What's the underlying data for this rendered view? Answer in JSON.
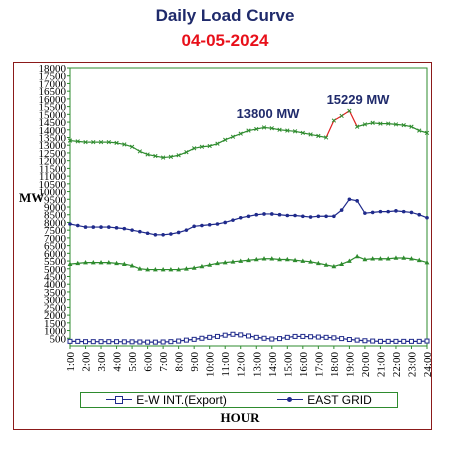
{
  "chart_data": {
    "type": "line",
    "title": "Daily Load Curve",
    "subtitle": "04-05-2024",
    "xlabel": "HOUR",
    "ylabel": "MW",
    "ylim": [
      0,
      18000
    ],
    "yticks": [
      "500",
      "1000",
      "1500",
      "2000",
      "2500",
      "3000",
      "3500",
      "4000",
      "4500",
      "5000",
      "5500",
      "6000",
      "6500",
      "7000",
      "7500",
      "8000",
      "8500",
      "9000",
      "9500",
      "10000",
      "10500",
      "11000",
      "11500",
      "12000",
      "12500",
      "13000",
      "13500",
      "14000",
      "14500",
      "15000",
      "15500",
      "16000",
      "16500",
      "17000",
      "17500",
      "18000"
    ],
    "categories": [
      "1:00",
      "2:00",
      "3:00",
      "4:00",
      "5:00",
      "6:00",
      "7:00",
      "8:00",
      "9:00",
      "10:00",
      "11:00",
      "12:00",
      "13:00",
      "14:00",
      "15:00",
      "16:00",
      "17:00",
      "18:00",
      "19:00",
      "20:00",
      "21:00",
      "22:00",
      "23:00",
      "24:00"
    ],
    "x": [
      1,
      1.5,
      2,
      2.5,
      3,
      3.5,
      4,
      4.5,
      5,
      5.5,
      6,
      6.5,
      7,
      7.5,
      8,
      8.5,
      9,
      9.5,
      10,
      10.5,
      11,
      11.5,
      12,
      12.5,
      13,
      13.5,
      14,
      14.5,
      15,
      15.5,
      16,
      16.5,
      17,
      17.5,
      18,
      18.5,
      19,
      19.5,
      20,
      20.5,
      21,
      21.5,
      22,
      22.5,
      23,
      23.5,
      24
    ],
    "series": [
      {
        "name": "",
        "color": "#2e8b2e",
        "marker": "cross",
        "values": [
          13300,
          13250,
          13200,
          13200,
          13200,
          13200,
          13150,
          13050,
          12900,
          12600,
          12400,
          12300,
          12200,
          12250,
          12350,
          12550,
          12800,
          12900,
          12950,
          13100,
          13350,
          13550,
          13750,
          13950,
          14050,
          14150,
          14100,
          14000,
          13950,
          13900,
          13800,
          13700,
          13600,
          13500,
          14600,
          14900,
          15229,
          14200,
          14350,
          14450,
          14400,
          14400,
          14350,
          14300,
          14200,
          13950,
          13800
        ]
      },
      {
        "name": "EAST GRID",
        "color": "#1f2a8b",
        "marker": "dot",
        "values": [
          7900,
          7800,
          7700,
          7700,
          7700,
          7700,
          7650,
          7600,
          7500,
          7400,
          7300,
          7200,
          7200,
          7250,
          7350,
          7500,
          7750,
          7800,
          7850,
          7900,
          8000,
          8150,
          8300,
          8400,
          8500,
          8550,
          8550,
          8500,
          8450,
          8450,
          8400,
          8350,
          8400,
          8400,
          8400,
          8800,
          9500,
          9400,
          8600,
          8650,
          8700,
          8700,
          8750,
          8700,
          8650,
          8500,
          8300
        ]
      },
      {
        "name": "",
        "color": "#2e8b2e",
        "marker": "triangle",
        "values": [
          5300,
          5350,
          5400,
          5400,
          5400,
          5400,
          5350,
          5300,
          5200,
          5000,
          4950,
          4950,
          4950,
          4950,
          4950,
          5000,
          5050,
          5150,
          5250,
          5350,
          5400,
          5450,
          5500,
          5550,
          5600,
          5650,
          5650,
          5600,
          5600,
          5550,
          5500,
          5450,
          5350,
          5250,
          5150,
          5300,
          5500,
          5800,
          5600,
          5650,
          5650,
          5650,
          5700,
          5700,
          5650,
          5550,
          5400
        ]
      },
      {
        "name": "E-W INT.(Export)",
        "color": "#1f2a8b",
        "marker": "square",
        "values": [
          300,
          300,
          280,
          280,
          280,
          280,
          280,
          270,
          270,
          260,
          250,
          250,
          260,
          280,
          320,
          380,
          430,
          500,
          560,
          620,
          700,
          760,
          720,
          650,
          560,
          500,
          450,
          480,
          560,
          620,
          620,
          600,
          580,
          560,
          530,
          480,
          420,
          380,
          340,
          320,
          300,
          300,
          300,
          300,
          300,
          300,
          320
        ]
      }
    ],
    "annotations": [
      {
        "text": "13800 MW",
        "x": 15.5,
        "y": 13800
      },
      {
        "text": "15229 MW",
        "x": 19.5,
        "y": 15229
      }
    ],
    "legend": {
      "position": "bottom",
      "items": [
        "E-W INT.(Export)",
        "EAST GRID"
      ]
    },
    "grid": false
  }
}
